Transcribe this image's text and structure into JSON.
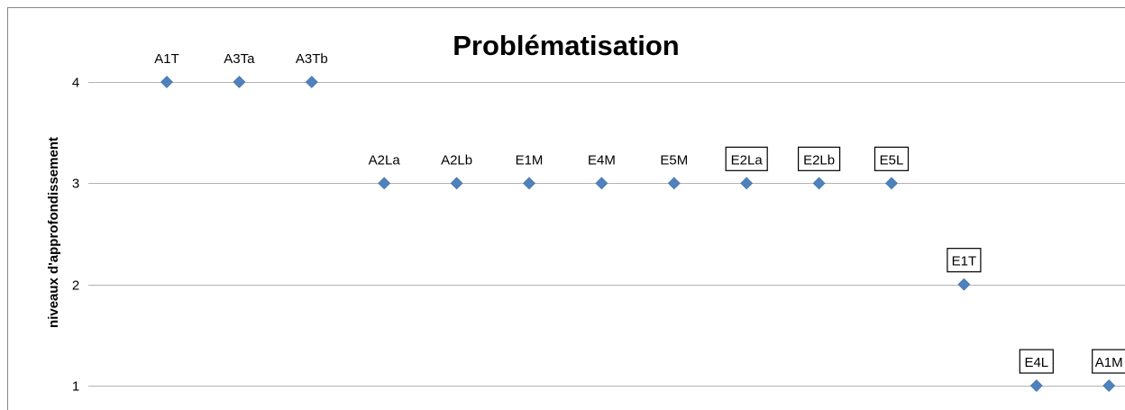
{
  "chart_data": {
    "type": "scatter",
    "title": "Problématisation",
    "ylabel": "niveaux d'approfondissement",
    "xlabel": "",
    "ylim": [
      1,
      4
    ],
    "yticks": [
      "1",
      "2",
      "3",
      "4"
    ],
    "grid": true,
    "points": [
      {
        "label": "A1T",
        "y": 4,
        "boxed": false
      },
      {
        "label": "A3Ta",
        "y": 4,
        "boxed": false
      },
      {
        "label": "A3Tb",
        "y": 4,
        "boxed": false
      },
      {
        "label": "A2La",
        "y": 3,
        "boxed": false
      },
      {
        "label": "A2Lb",
        "y": 3,
        "boxed": false
      },
      {
        "label": "E1M",
        "y": 3,
        "boxed": false
      },
      {
        "label": "E4M",
        "y": 3,
        "boxed": false
      },
      {
        "label": "E5M",
        "y": 3,
        "boxed": false
      },
      {
        "label": "E2La",
        "y": 3,
        "boxed": true
      },
      {
        "label": "E2Lb",
        "y": 3,
        "boxed": true
      },
      {
        "label": "E5L",
        "y": 3,
        "boxed": true
      },
      {
        "label": "E1T",
        "y": 2,
        "boxed": true
      },
      {
        "label": "E4L",
        "y": 1,
        "boxed": true
      },
      {
        "label": "A1M",
        "y": 1,
        "boxed": true
      }
    ],
    "colors": {
      "marker": "#4f81bd",
      "grid": "#b3b3b3"
    }
  }
}
